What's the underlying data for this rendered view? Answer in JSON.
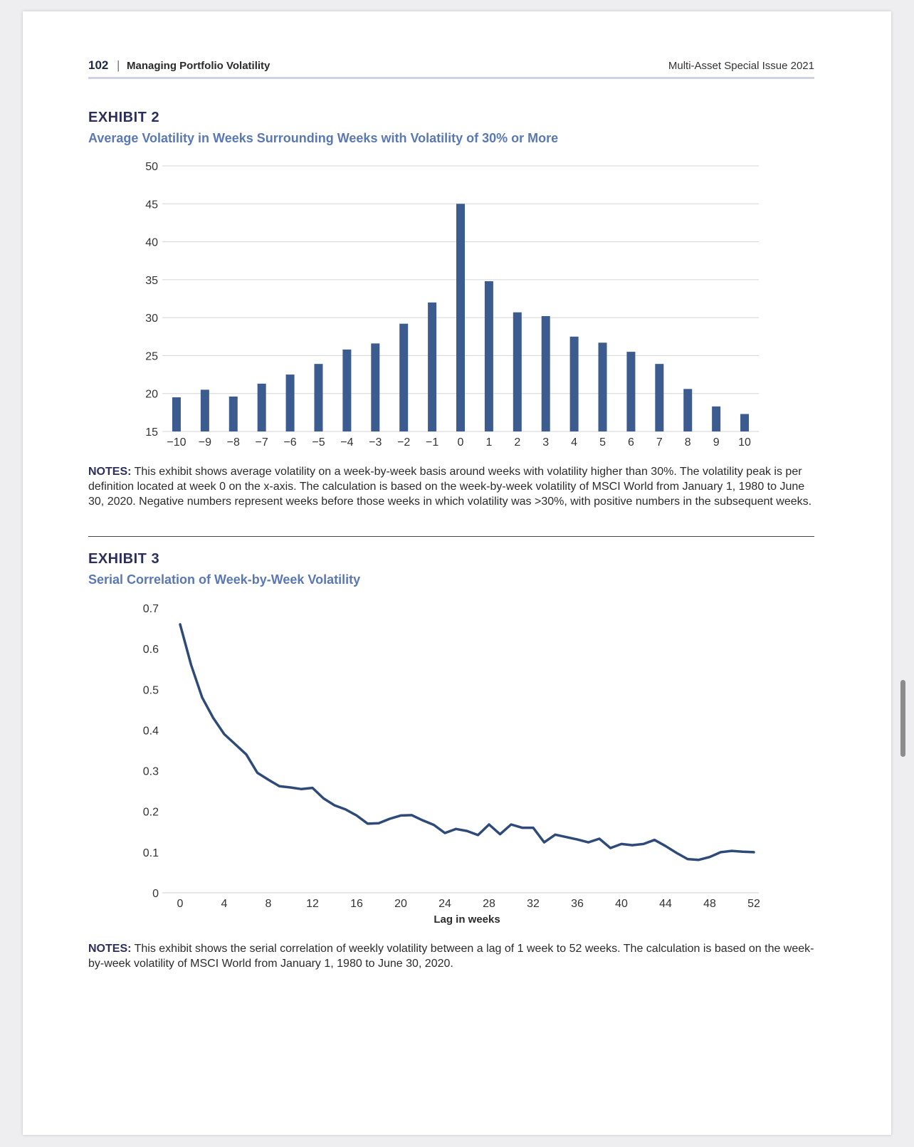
{
  "header": {
    "page_number": "102",
    "separator": "|",
    "running_title": "Managing Portfolio Volatility",
    "issue": "Multi-Asset Special Issue 2021"
  },
  "exhibit2": {
    "label": "EXHIBIT 2",
    "title": "Average Volatility in Weeks Surrounding Weeks with Volatility of 30% or More",
    "notes_label": "NOTES:",
    "notes_text": " This exhibit shows average volatility on a week-by-week basis around weeks with volatility higher than 30%. The volatility peak is per definition located at week 0 on the x-axis. The calculation is based on the week-by-week volatility of MSCI World from January 1, 1980 to June 30, 2020. Negative numbers represent weeks before those weeks in which volatility was >30%, with positive numbers in the subsequent weeks."
  },
  "exhibit3": {
    "label": "EXHIBIT 3",
    "title": "Serial Correlation of Week-by-Week Volatility",
    "notes_label": "NOTES:",
    "notes_text": " This exhibit shows the serial correlation of weekly volatility between a lag of 1 week to 52 weeks. The calculation is based on the week-by-week volatility of MSCI World from January 1, 1980 to June 30, 2020."
  },
  "chart_data": [
    {
      "type": "bar",
      "color": "#3c5b8e",
      "categories": [
        "−10",
        "−9",
        "−8",
        "−7",
        "−6",
        "−5",
        "−4",
        "−3",
        "−2",
        "−1",
        "0",
        "1",
        "2",
        "3",
        "4",
        "5",
        "6",
        "7",
        "8",
        "9",
        "10"
      ],
      "values": [
        19.5,
        20.5,
        19.6,
        21.3,
        22.5,
        23.9,
        25.8,
        26.6,
        29.2,
        32.0,
        45.0,
        34.8,
        30.7,
        30.2,
        27.5,
        26.7,
        25.5,
        23.9,
        20.6,
        18.3,
        17.3
      ],
      "ylim": [
        15,
        50
      ],
      "yticks": [
        "15",
        "20",
        "25",
        "30",
        "35",
        "40",
        "45",
        "50"
      ],
      "grid": true
    },
    {
      "type": "line",
      "color": "#2e4a78",
      "xlabel": "Lag in weeks",
      "xlim": [
        0,
        52
      ],
      "ylim": [
        0,
        0.7
      ],
      "xticks": [
        "0",
        "4",
        "8",
        "12",
        "16",
        "20",
        "24",
        "28",
        "32",
        "36",
        "40",
        "44",
        "48",
        "52"
      ],
      "yticks": [
        "0",
        "0.1",
        "0.2",
        "0.3",
        "0.4",
        "0.5",
        "0.6",
        "0.7"
      ],
      "x": [
        0,
        1,
        2,
        3,
        4,
        5,
        6,
        7,
        8,
        9,
        10,
        11,
        12,
        13,
        14,
        15,
        16,
        17,
        18,
        19,
        20,
        21,
        22,
        23,
        24,
        25,
        26,
        27,
        28,
        29,
        30,
        31,
        32,
        33,
        34,
        35,
        36,
        37,
        38,
        39,
        40,
        41,
        42,
        43,
        44,
        45,
        46,
        47,
        48,
        49,
        50,
        51,
        52
      ],
      "y": [
        0.66,
        0.56,
        0.48,
        0.43,
        0.39,
        0.365,
        0.34,
        0.295,
        0.278,
        0.262,
        0.259,
        0.255,
        0.258,
        0.232,
        0.215,
        0.205,
        0.19,
        0.17,
        0.171,
        0.182,
        0.19,
        0.191,
        0.178,
        0.167,
        0.147,
        0.157,
        0.152,
        0.142,
        0.168,
        0.144,
        0.168,
        0.16,
        0.16,
        0.124,
        0.143,
        0.137,
        0.131,
        0.124,
        0.133,
        0.11,
        0.12,
        0.117,
        0.12,
        0.13,
        0.115,
        0.098,
        0.083,
        0.081,
        0.088,
        0.1,
        0.103,
        0.101,
        0.1
      ],
      "grid": false
    }
  ]
}
